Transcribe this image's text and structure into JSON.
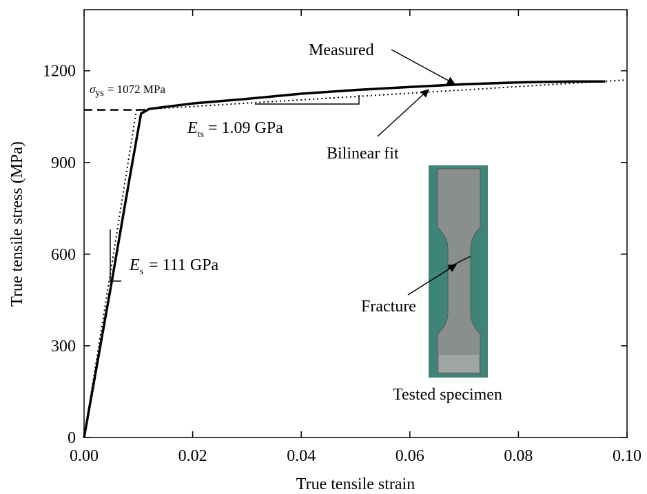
{
  "chart_data": {
    "type": "line",
    "xlabel": "True tensile strain",
    "ylabel": "True tensile stress (MPa)",
    "xlim": [
      0,
      0.1
    ],
    "ylim": [
      0,
      1400
    ],
    "xticks": [
      {
        "value": 0,
        "label": "0.00"
      },
      {
        "value": 0.02,
        "label": "0.02"
      },
      {
        "value": 0.04,
        "label": "0.04"
      },
      {
        "value": 0.06,
        "label": "0.06"
      },
      {
        "value": 0.08,
        "label": "0.08"
      },
      {
        "value": 0.1,
        "label": "0.10"
      }
    ],
    "yticks": [
      0,
      300,
      600,
      900,
      1200
    ],
    "series": [
      {
        "name": "Measured",
        "color": "#000000",
        "style": "solid",
        "x": [
          0,
          0.005,
          0.0085,
          0.0105,
          0.012,
          0.02,
          0.03,
          0.04,
          0.05,
          0.06,
          0.07,
          0.08,
          0.09,
          0.096
        ],
        "values": [
          0,
          500,
          860,
          1060,
          1075,
          1093,
          1108,
          1125,
          1137,
          1147,
          1156,
          1162,
          1165,
          1165
        ]
      },
      {
        "name": "Bilinear fit",
        "color": "#000000",
        "style": "dotted",
        "x": [
          0,
          0.00966,
          0.1
        ],
        "values": [
          0,
          1072,
          1170
        ]
      }
    ],
    "yield_stress": 1072,
    "annotations": {
      "sigma": {
        "symbol": "σ",
        "sub": "ys",
        "text": "= 1072 MPa"
      },
      "es": {
        "symbol": "E",
        "sub": "s",
        "text": "= 111 GPa"
      },
      "ets": {
        "symbol": "E",
        "sub": "ts",
        "text": "= 1.09 GPa"
      },
      "fracture": "Fracture",
      "specimen": "Tested specimen"
    }
  }
}
